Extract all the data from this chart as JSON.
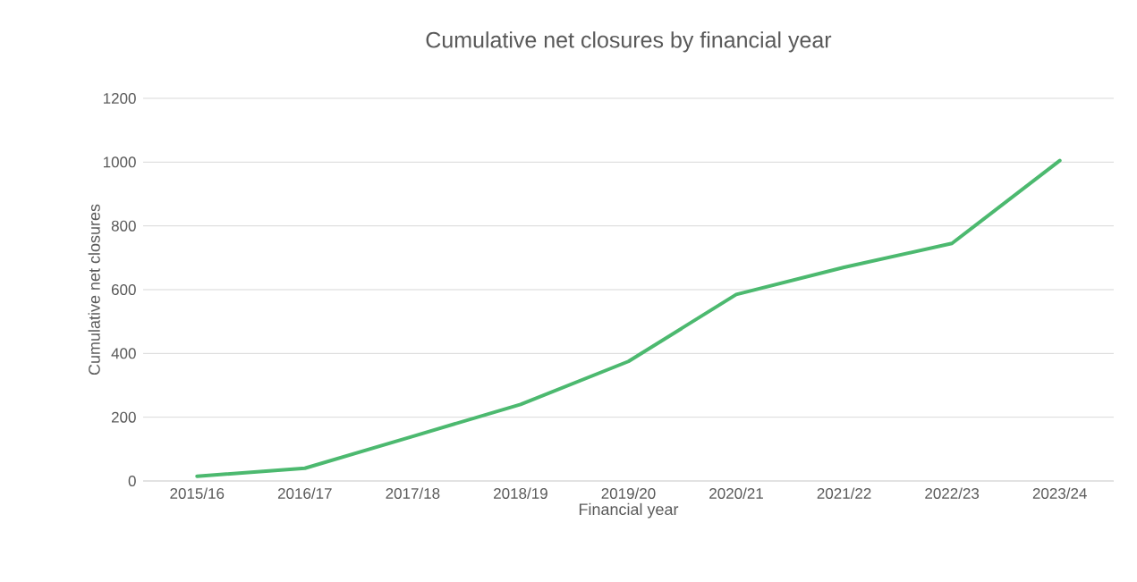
{
  "chart_data": {
    "type": "line",
    "title": "Cumulative net closures by financial year",
    "xlabel": "Financial year",
    "ylabel": "Cumulative net closures",
    "categories": [
      "2015/16",
      "2016/17",
      "2017/18",
      "2018/19",
      "2019/20",
      "2020/21",
      "2021/22",
      "2022/23",
      "2023/24"
    ],
    "series": [
      {
        "color": "#4cb96f",
        "values": [
          15,
          40,
          140,
          240,
          375,
          585,
          670,
          745,
          1005
        ]
      }
    ],
    "ylim": [
      0,
      1200
    ],
    "yticks": [
      0,
      200,
      400,
      600,
      800,
      1000,
      1200
    ],
    "grid": "y"
  }
}
